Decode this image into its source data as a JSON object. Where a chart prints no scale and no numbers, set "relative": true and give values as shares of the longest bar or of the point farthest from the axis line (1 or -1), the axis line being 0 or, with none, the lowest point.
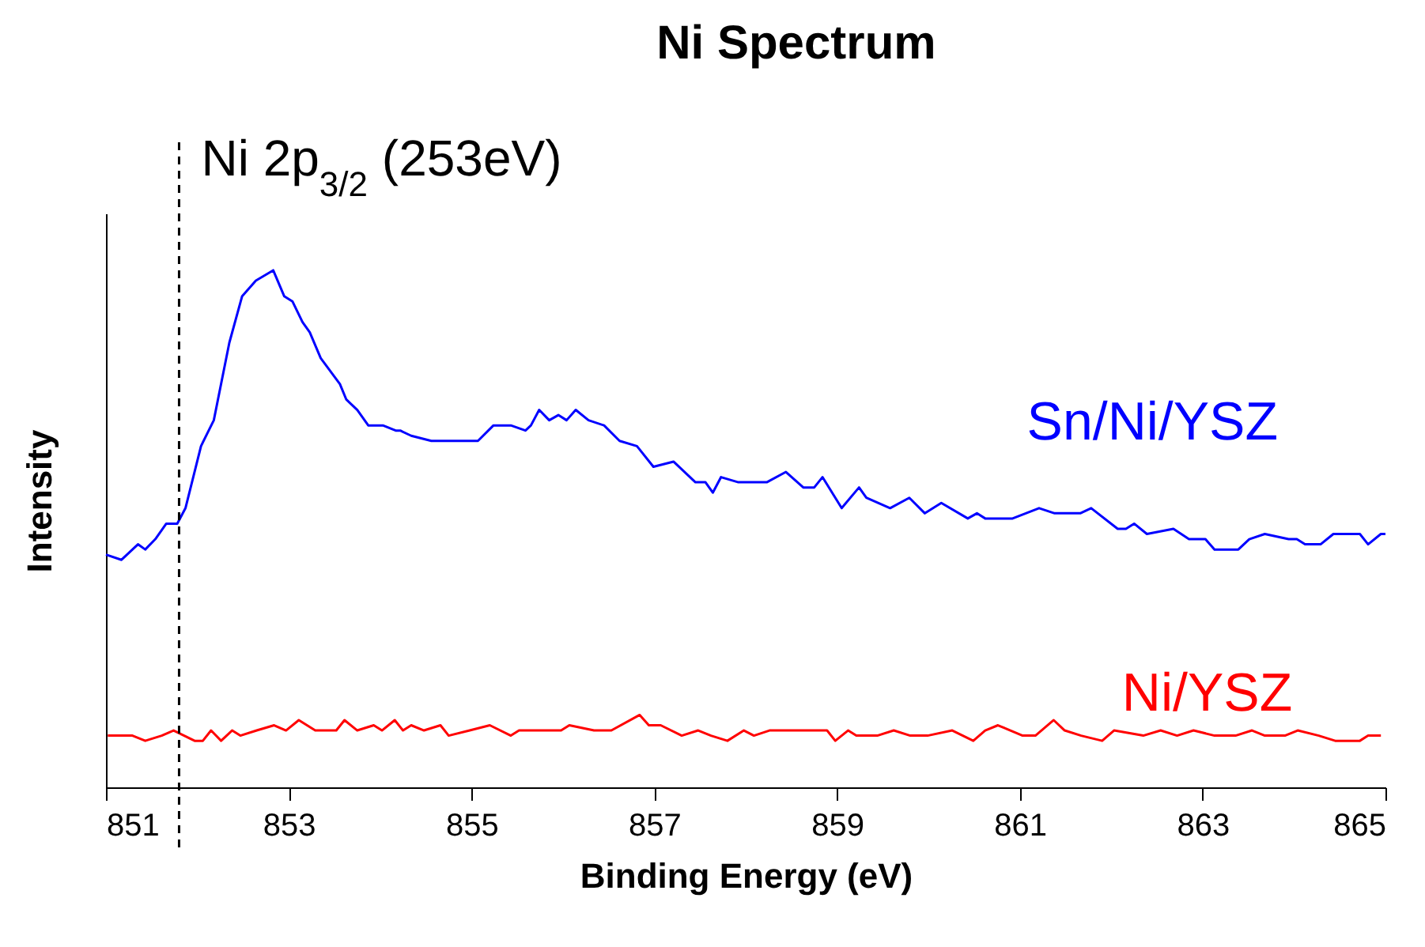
{
  "chart_data": {
    "type": "line",
    "title": "Ni Spectrum",
    "xlabel": "Binding Energy (eV)",
    "ylabel": "Intensity",
    "relative": true,
    "xlim": [
      851,
      865
    ],
    "xticks": [
      851,
      853,
      855,
      857,
      859,
      861,
      863,
      865
    ],
    "grid": false,
    "legend": false,
    "ref_lines": [
      {
        "axis": "x",
        "value": 851.8,
        "label": "Ni 2p$_{3/2}$ (253eV)",
        "color": "#000000",
        "line_style": "dashed"
      }
    ],
    "series": [
      {
        "name": "Sn/Ni/YSZ",
        "color": "#0000ff",
        "x": [
          851.0,
          851.17,
          851.35,
          851.43,
          851.54,
          851.66,
          851.78,
          851.87,
          852.04,
          852.18,
          852.35,
          852.49,
          852.64,
          852.83,
          852.95,
          853.04,
          853.15,
          853.23,
          853.35,
          853.56,
          853.63,
          853.75,
          853.87,
          854.03,
          854.17,
          854.22,
          854.34,
          854.56,
          854.81,
          854.86,
          855.07,
          855.24,
          855.43,
          855.59,
          855.65,
          855.74,
          855.85,
          855.95,
          856.04,
          856.14,
          856.28,
          856.45,
          856.62,
          856.81,
          856.99,
          857.21,
          857.45,
          857.56,
          857.64,
          857.73,
          857.92,
          858.09,
          858.23,
          858.44,
          858.63,
          858.75,
          858.84,
          859.05,
          859.24,
          859.32,
          859.58,
          859.79,
          859.96,
          860.14,
          860.43,
          860.53,
          860.62,
          860.92,
          861.21,
          861.38,
          861.66,
          861.78,
          862.07,
          862.16,
          862.25,
          862.39,
          862.68,
          862.85,
          863.03,
          863.13,
          863.39,
          863.51,
          863.68,
          863.94,
          864.03,
          864.12,
          864.29,
          864.43,
          864.72,
          864.81,
          864.95,
          865.0
        ],
        "values": [
          0.45,
          0.44,
          0.47,
          0.46,
          0.48,
          0.51,
          0.51,
          0.54,
          0.66,
          0.71,
          0.86,
          0.95,
          0.98,
          1.0,
          0.95,
          0.94,
          0.9,
          0.88,
          0.83,
          0.78,
          0.75,
          0.73,
          0.7,
          0.7,
          0.69,
          0.69,
          0.68,
          0.67,
          0.67,
          0.67,
          0.67,
          0.7,
          0.7,
          0.69,
          0.7,
          0.73,
          0.71,
          0.72,
          0.71,
          0.73,
          0.71,
          0.7,
          0.67,
          0.66,
          0.62,
          0.63,
          0.59,
          0.59,
          0.57,
          0.6,
          0.59,
          0.59,
          0.59,
          0.61,
          0.58,
          0.58,
          0.6,
          0.54,
          0.58,
          0.56,
          0.54,
          0.56,
          0.53,
          0.55,
          0.52,
          0.53,
          0.52,
          0.52,
          0.54,
          0.53,
          0.53,
          0.54,
          0.5,
          0.5,
          0.51,
          0.49,
          0.5,
          0.48,
          0.48,
          0.46,
          0.46,
          0.48,
          0.49,
          0.48,
          0.48,
          0.47,
          0.47,
          0.49,
          0.49,
          0.47,
          0.49,
          0.49
        ]
      },
      {
        "name": "Ni/YSZ",
        "color": "#ff0000",
        "x": [
          851.02,
          851.29,
          851.43,
          851.61,
          851.74,
          851.97,
          852.06,
          852.15,
          852.26,
          852.38,
          852.47,
          852.65,
          852.84,
          852.97,
          853.11,
          853.29,
          853.52,
          853.61,
          853.75,
          853.93,
          854.02,
          854.16,
          854.25,
          854.34,
          854.48,
          854.66,
          854.75,
          854.98,
          855.2,
          855.43,
          855.52,
          855.66,
          855.84,
          855.98,
          856.07,
          856.34,
          856.53,
          856.84,
          856.94,
          857.07,
          857.3,
          857.48,
          857.62,
          857.8,
          857.98,
          858.09,
          858.26,
          858.53,
          858.89,
          858.98,
          859.12,
          859.21,
          859.44,
          859.62,
          859.8,
          859.99,
          860.26,
          860.49,
          860.62,
          860.76,
          861.03,
          861.17,
          861.37,
          861.49,
          861.67,
          861.9,
          862.03,
          862.35,
          862.54,
          862.72,
          862.9,
          863.13,
          863.36,
          863.54,
          863.68,
          863.9,
          864.04,
          864.27,
          864.45,
          864.72,
          864.81,
          864.95
        ],
        "values": [
          0.1,
          0.1,
          0.09,
          0.1,
          0.11,
          0.09,
          0.09,
          0.11,
          0.09,
          0.11,
          0.1,
          0.11,
          0.12,
          0.11,
          0.13,
          0.11,
          0.11,
          0.13,
          0.11,
          0.12,
          0.11,
          0.13,
          0.11,
          0.12,
          0.11,
          0.12,
          0.1,
          0.11,
          0.12,
          0.1,
          0.11,
          0.11,
          0.11,
          0.11,
          0.12,
          0.11,
          0.11,
          0.14,
          0.12,
          0.12,
          0.1,
          0.11,
          0.1,
          0.09,
          0.11,
          0.1,
          0.11,
          0.11,
          0.11,
          0.09,
          0.11,
          0.1,
          0.1,
          0.11,
          0.1,
          0.1,
          0.11,
          0.09,
          0.11,
          0.12,
          0.1,
          0.1,
          0.13,
          0.11,
          0.1,
          0.09,
          0.11,
          0.1,
          0.11,
          0.1,
          0.11,
          0.1,
          0.1,
          0.11,
          0.1,
          0.1,
          0.11,
          0.1,
          0.09,
          0.09,
          0.1,
          0.1
        ]
      }
    ]
  }
}
